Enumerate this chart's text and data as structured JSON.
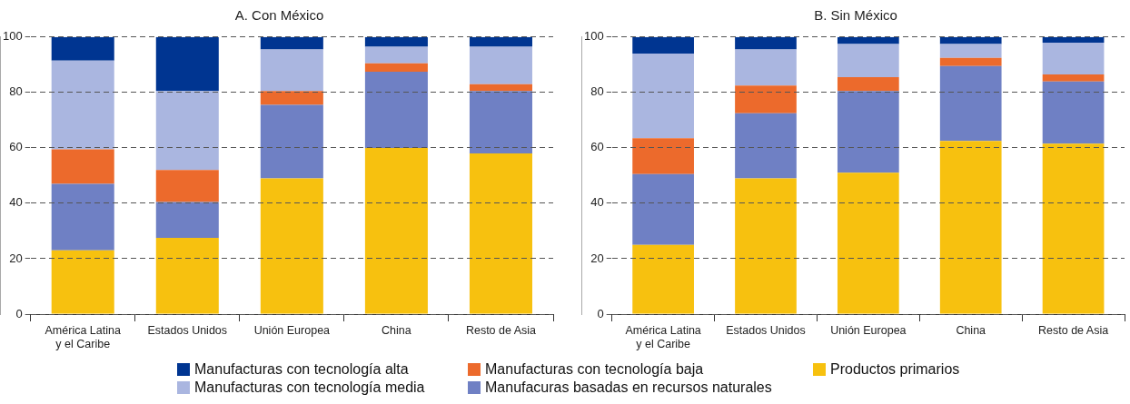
{
  "chart_data": [
    {
      "type": "bar",
      "title": "A. Con México",
      "stacked": true,
      "grid": "y",
      "legend": "bottom",
      "categories": [
        "América Latina y el Caribe",
        "Estados Unidos",
        "Unión Europea",
        "China",
        "Resto de Asia"
      ],
      "ylim": [
        0,
        100
      ],
      "yticks": [
        0,
        20,
        40,
        60,
        80,
        100
      ],
      "series": [
        {
          "name": "Productos primarios",
          "color": "#f7c10f",
          "values": [
            23,
            27.5,
            49,
            60,
            58
          ]
        },
        {
          "name": "Manufacuras basadas en recursos naturales",
          "color": "#6f80c4",
          "values": [
            24,
            13,
            26.5,
            27.5,
            22.5
          ]
        },
        {
          "name": "Manufacturas con tecnología baja",
          "color": "#ec6a2c",
          "values": [
            12.5,
            11.5,
            5,
            3,
            2.5
          ]
        },
        {
          "name": "Manufacturas con tecnología media",
          "color": "#aab6e0",
          "values": [
            32,
            28.5,
            15,
            6,
            13.5
          ]
        },
        {
          "name": "Manufacturas con tecnología alta",
          "color": "#003591",
          "values": [
            8.5,
            19.5,
            4.5,
            3.5,
            3.5
          ]
        }
      ]
    },
    {
      "type": "bar",
      "title": "B. Sin México",
      "stacked": true,
      "grid": "y",
      "categories": [
        "América Latina y el Caribe",
        "Estados Unidos",
        "Unión Europea",
        "China",
        "Resto de Asia"
      ],
      "ylim": [
        0,
        100
      ],
      "yticks": [
        0,
        20,
        40,
        60,
        80,
        100
      ],
      "series": [
        {
          "color": "#f7c10f",
          "values": [
            25,
            49,
            51,
            62.5,
            61.5
          ]
        },
        {
          "color": "#6f80c4",
          "values": [
            25.5,
            23.5,
            29.5,
            27,
            22.5
          ]
        },
        {
          "color": "#ec6a2c",
          "values": [
            13,
            10,
            5,
            3,
            2.5
          ]
        },
        {
          "color": "#aab6e0",
          "values": [
            30.5,
            13,
            12,
            5,
            11.5
          ]
        },
        {
          "color": "#003591",
          "values": [
            6,
            4.5,
            2.5,
            2.5,
            2
          ]
        }
      ]
    }
  ]
}
